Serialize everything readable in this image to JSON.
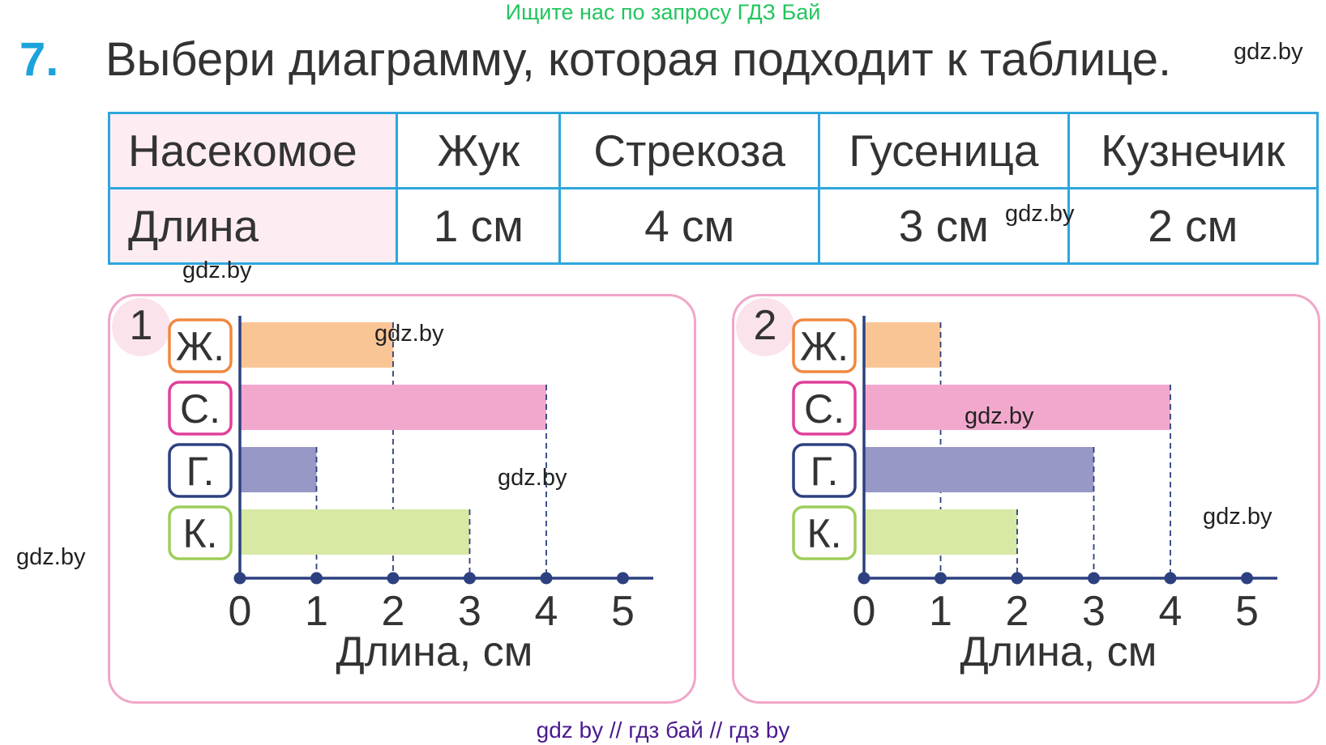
{
  "banner": "Ищите нас по запросу ГДЗ Бай",
  "task": {
    "number": "7.",
    "text": "Выбери диаграмму, которая подходит к таблице."
  },
  "table": {
    "headers": [
      "Насекомое",
      "Жук",
      "Стрекоза",
      "Гусеница",
      "Кузнечик"
    ],
    "row": [
      "Длина",
      "1 см",
      "4 см",
      "3 см",
      "2 см"
    ]
  },
  "watermark": "gdz.by",
  "footer": "gdz by  //  гдз бай  //  гдз by",
  "chart_data": [
    {
      "type": "bar",
      "panel_label": "1",
      "categories": [
        "Ж.",
        "С.",
        "Г.",
        "К."
      ],
      "values": [
        2,
        4,
        1,
        3
      ],
      "colors": [
        "#fac595",
        "#f2a8cc",
        "#9898c6",
        "#d8e8a5"
      ],
      "label_border_colors": [
        "#f0883f",
        "#e0409a",
        "#2d4080",
        "#9fcd5b"
      ],
      "xticks": [
        "0",
        "1",
        "2",
        "3",
        "4",
        "5"
      ],
      "xlim": [
        0,
        5
      ],
      "xlabel": "Длина, см",
      "axis_color": "#2d4080"
    },
    {
      "type": "bar",
      "panel_label": "2",
      "categories": [
        "Ж.",
        "С.",
        "Г.",
        "К."
      ],
      "values": [
        1,
        4,
        3,
        2
      ],
      "colors": [
        "#fac595",
        "#f2a8cc",
        "#9898c6",
        "#d8e8a5"
      ],
      "label_border_colors": [
        "#f0883f",
        "#e0409a",
        "#2d4080",
        "#9fcd5b"
      ],
      "xticks": [
        "0",
        "1",
        "2",
        "3",
        "4",
        "5"
      ],
      "xlim": [
        0,
        5
      ],
      "xlabel": "Длина, см",
      "axis_color": "#2d4080"
    }
  ]
}
